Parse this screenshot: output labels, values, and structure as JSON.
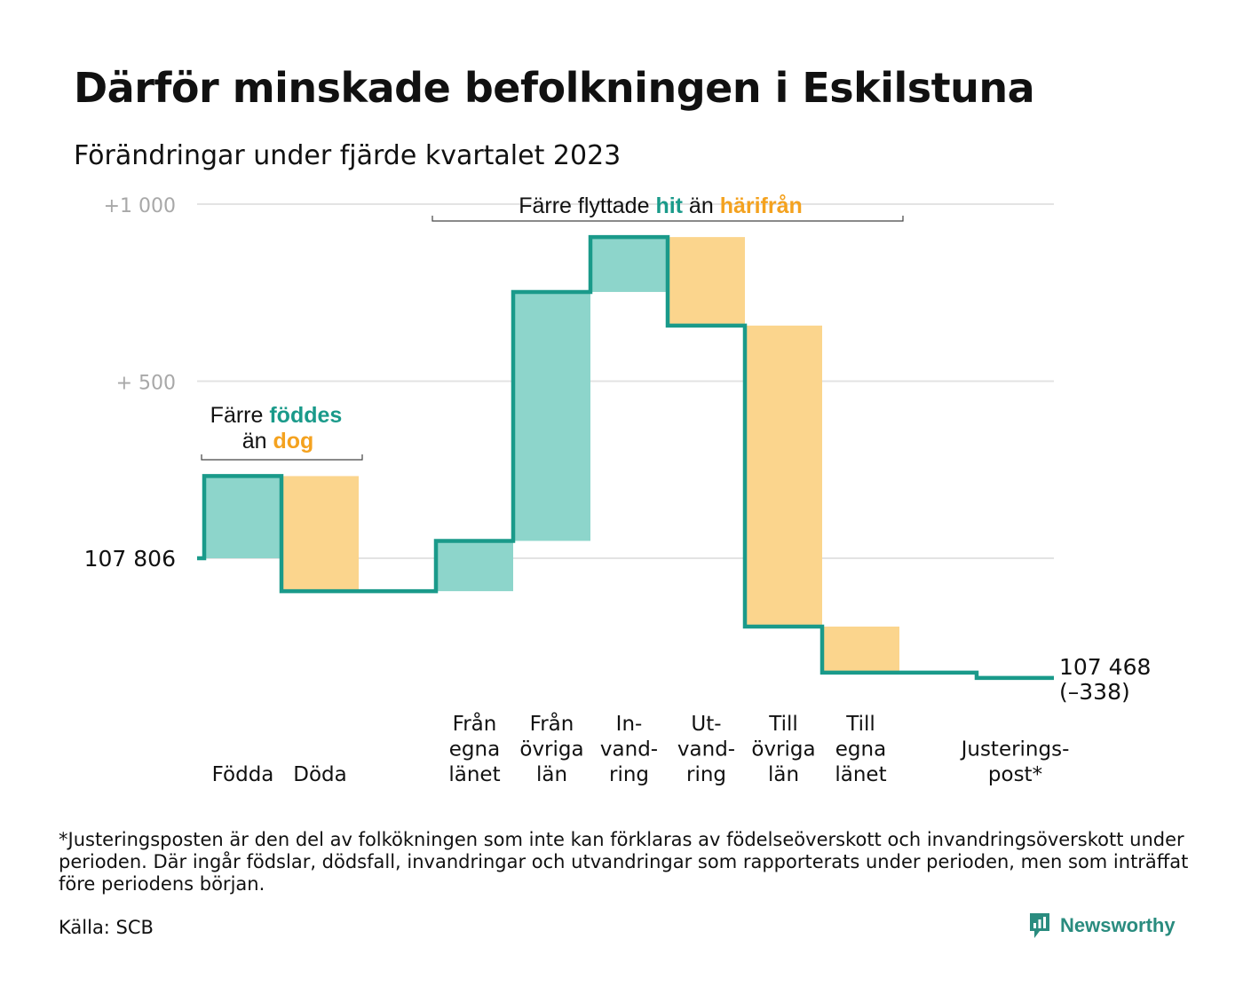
{
  "title": "Därför minskade befolkningen i Eskilstuna",
  "subtitle": "Förändringar under fjärde kvartalet 2023",
  "colors": {
    "teal": "#1a9a8a",
    "teal_light": "#8dd5cb",
    "orange": "#f4a21f",
    "orange_light": "#fbd58d",
    "grid": "#e3e3e3",
    "tick_gray": "#a8a8a8"
  },
  "annotations": {
    "births": {
      "line1_pre": "Färre ",
      "line1_hl": "föddes",
      "line2_pre": "än ",
      "line2_hl": "dog"
    },
    "migration": {
      "pre": "Färre flyttade ",
      "hl1": "hit",
      "mid": " än ",
      "hl2": "härifrån"
    }
  },
  "end_label": {
    "value": "107 468",
    "change": "(–338)"
  },
  "footnote": "*Justeringsposten är den del av folkökningen som inte kan förklaras av födelseöverskott och invandringsöverskott under perioden. Där ingår födslar, dödsfall, invandringar och utvandringar som rapporterats under perioden, men som inträffat före periodens början.",
  "source": "Källa: SCB",
  "brand": {
    "name": "Newsworthy",
    "icon": "newsworthy-logo-icon"
  },
  "chart_data": {
    "type": "waterfall",
    "start": 107806,
    "end": 107468,
    "net_change": -338,
    "y_ticks": [
      {
        "value": 1000,
        "label": "+1 000"
      },
      {
        "value": 500,
        "label": "+ 500"
      },
      {
        "value": 0,
        "label": "107 806"
      }
    ],
    "ylim": [
      -400,
      1000
    ],
    "steps": [
      {
        "label": [
          "",
          "",
          "Födda"
        ],
        "delta": 232,
        "kind": "in"
      },
      {
        "label": [
          "",
          "",
          "Döda"
        ],
        "delta": -325,
        "kind": "out"
      },
      {
        "label": [
          "Från",
          "egna",
          "länet"
        ],
        "delta": 142,
        "kind": "in"
      },
      {
        "label": [
          "Från",
          "övriga",
          "län"
        ],
        "delta": 703,
        "kind": "in"
      },
      {
        "label": [
          "In-",
          "vand-",
          "ring"
        ],
        "delta": 155,
        "kind": "in"
      },
      {
        "label": [
          "Ut-",
          "vand-",
          "ring"
        ],
        "delta": -250,
        "kind": "out"
      },
      {
        "label": [
          "Till",
          "övriga",
          "län"
        ],
        "delta": -850,
        "kind": "out"
      },
      {
        "label": [
          "Till",
          "egna",
          "länet"
        ],
        "delta": -130,
        "kind": "out"
      },
      {
        "label": [
          "",
          "Justerings-",
          "post*"
        ],
        "delta": -15,
        "kind": "adjustment"
      }
    ]
  }
}
